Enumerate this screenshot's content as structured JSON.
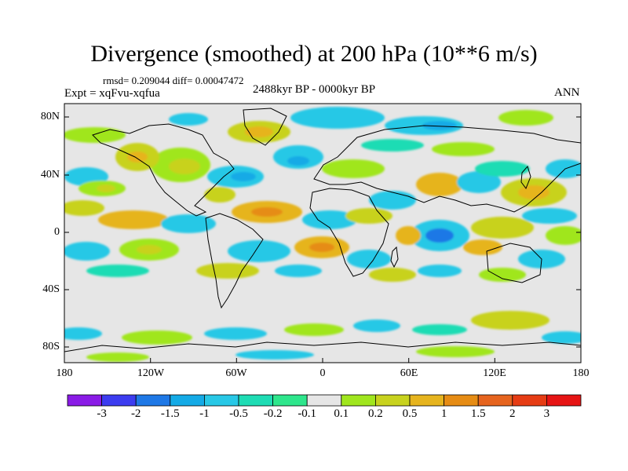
{
  "title": "Divergence (smoothed) at 200 hPa (10**6 m/s)",
  "stats": "rmsd= 0.209044 diff= 0.00047472",
  "expt": "Expt = xqFvu-xqfua",
  "period": "2488kyr BP - 0000kyr BP",
  "season": "ANN",
  "lat_ticks": [
    "80N",
    "40N",
    "0",
    "40S",
    "80S"
  ],
  "lon_ticks": [
    "180",
    "120W",
    "60W",
    "0",
    "60E",
    "120E",
    "180"
  ],
  "colorbar": {
    "labels": [
      "-3",
      "-2",
      "-1.5",
      "-1",
      "-0.5",
      "-0.2",
      "-0.1",
      "0.1",
      "0.2",
      "0.5",
      "1",
      "1.5",
      "2",
      "3"
    ],
    "colors": [
      "#8a1be6",
      "#3c3cf0",
      "#1e78e6",
      "#14aae6",
      "#28c8e6",
      "#1edcb4",
      "#2ee68c",
      "#e6e6e6",
      "#a0e61e",
      "#c8d21e",
      "#e6b41e",
      "#e68c14",
      "#e6641e",
      "#e63c14",
      "#e61414"
    ]
  },
  "colors": {
    "land_outline": "#000000",
    "ocean_background": "#e6e6e6"
  }
}
